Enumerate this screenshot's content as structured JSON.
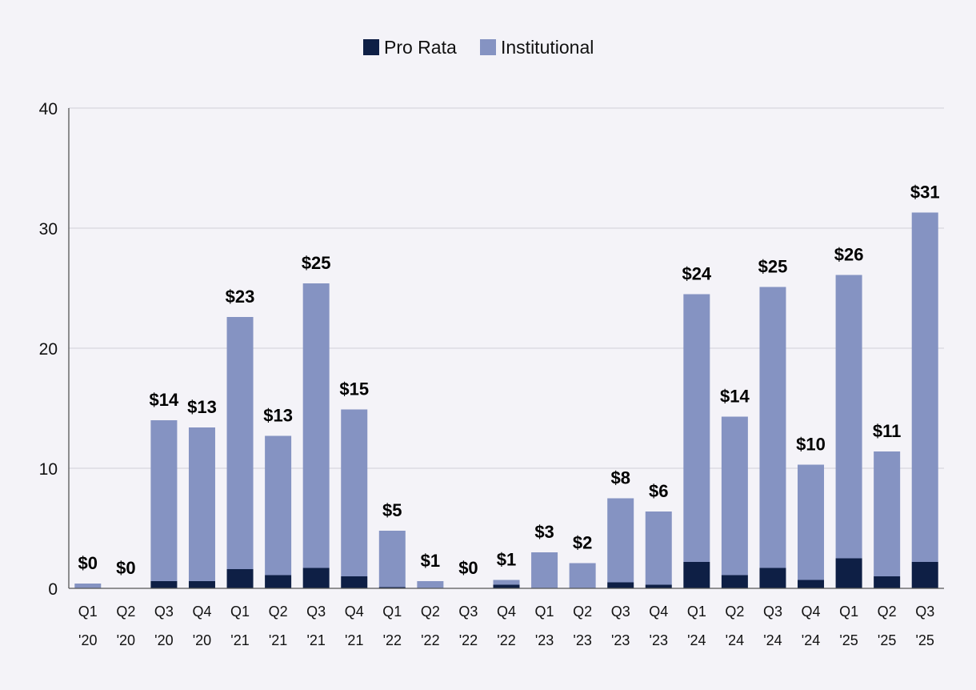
{
  "chart_data": {
    "type": "bar",
    "stacked": true,
    "title": "",
    "xlabel": "",
    "ylabel": "",
    "ylim": [
      0,
      40
    ],
    "yticks": [
      0,
      10,
      20,
      30,
      40
    ],
    "grid": true,
    "legend_position": "top-center",
    "categories": [
      "Q1 '20",
      "Q2 '20",
      "Q3 '20",
      "Q4 '20",
      "Q1 '21",
      "Q2 '21",
      "Q3 '21",
      "Q4 '21",
      "Q1 '22",
      "Q2 '22",
      "Q3 '22",
      "Q4 '22",
      "Q1 '23",
      "Q2 '23",
      "Q3 '23",
      "Q4 '23",
      "Q1 '24",
      "Q2 '24",
      "Q3 '24",
      "Q4 '24",
      "Q1 '25",
      "Q2 '25",
      "Q3 '25"
    ],
    "category_lines": [
      [
        "Q1",
        "'20"
      ],
      [
        "Q2",
        "'20"
      ],
      [
        "Q3",
        "'20"
      ],
      [
        "Q4",
        "'20"
      ],
      [
        "Q1",
        "'21"
      ],
      [
        "Q2",
        "'21"
      ],
      [
        "Q3",
        "'21"
      ],
      [
        "Q4",
        "'21"
      ],
      [
        "Q1",
        "'22"
      ],
      [
        "Q2",
        "'22"
      ],
      [
        "Q3",
        "'22"
      ],
      [
        "Q4",
        "'22"
      ],
      [
        "Q1",
        "'23"
      ],
      [
        "Q2",
        "'23"
      ],
      [
        "Q3",
        "'23"
      ],
      [
        "Q4",
        "'23"
      ],
      [
        "Q1",
        "'24"
      ],
      [
        "Q2",
        "'24"
      ],
      [
        "Q3",
        "'24"
      ],
      [
        "Q4",
        "'24"
      ],
      [
        "Q1",
        "'25"
      ],
      [
        "Q2",
        "'25"
      ],
      [
        "Q3",
        "'25"
      ]
    ],
    "series": [
      {
        "name": "Pro Rata",
        "color": "#0e1f45",
        "values": [
          0,
          0,
          0.6,
          0.6,
          1.6,
          1.1,
          1.7,
          1.0,
          0.1,
          0,
          0,
          0.3,
          0,
          0,
          0.5,
          0.3,
          2.2,
          1.1,
          1.7,
          0.7,
          2.5,
          1.0,
          2.2
        ]
      },
      {
        "name": "Institutional",
        "color": "#8593c2",
        "values": [
          0.4,
          0,
          13.4,
          12.8,
          21.0,
          11.6,
          23.7,
          13.9,
          4.7,
          0.6,
          0,
          0.4,
          3.0,
          2.1,
          7.0,
          6.1,
          22.3,
          13.2,
          23.4,
          9.6,
          23.6,
          10.4,
          29.1
        ]
      }
    ],
    "data_labels": [
      "$0",
      "$0",
      "$14",
      "$13",
      "$23",
      "$13",
      "$25",
      "$15",
      "$5",
      "$1",
      "$0",
      "$1",
      "$3",
      "$2",
      "$8",
      "$6",
      "$24",
      "$14",
      "$25",
      "$10",
      "$26",
      "$11",
      "$31"
    ]
  }
}
